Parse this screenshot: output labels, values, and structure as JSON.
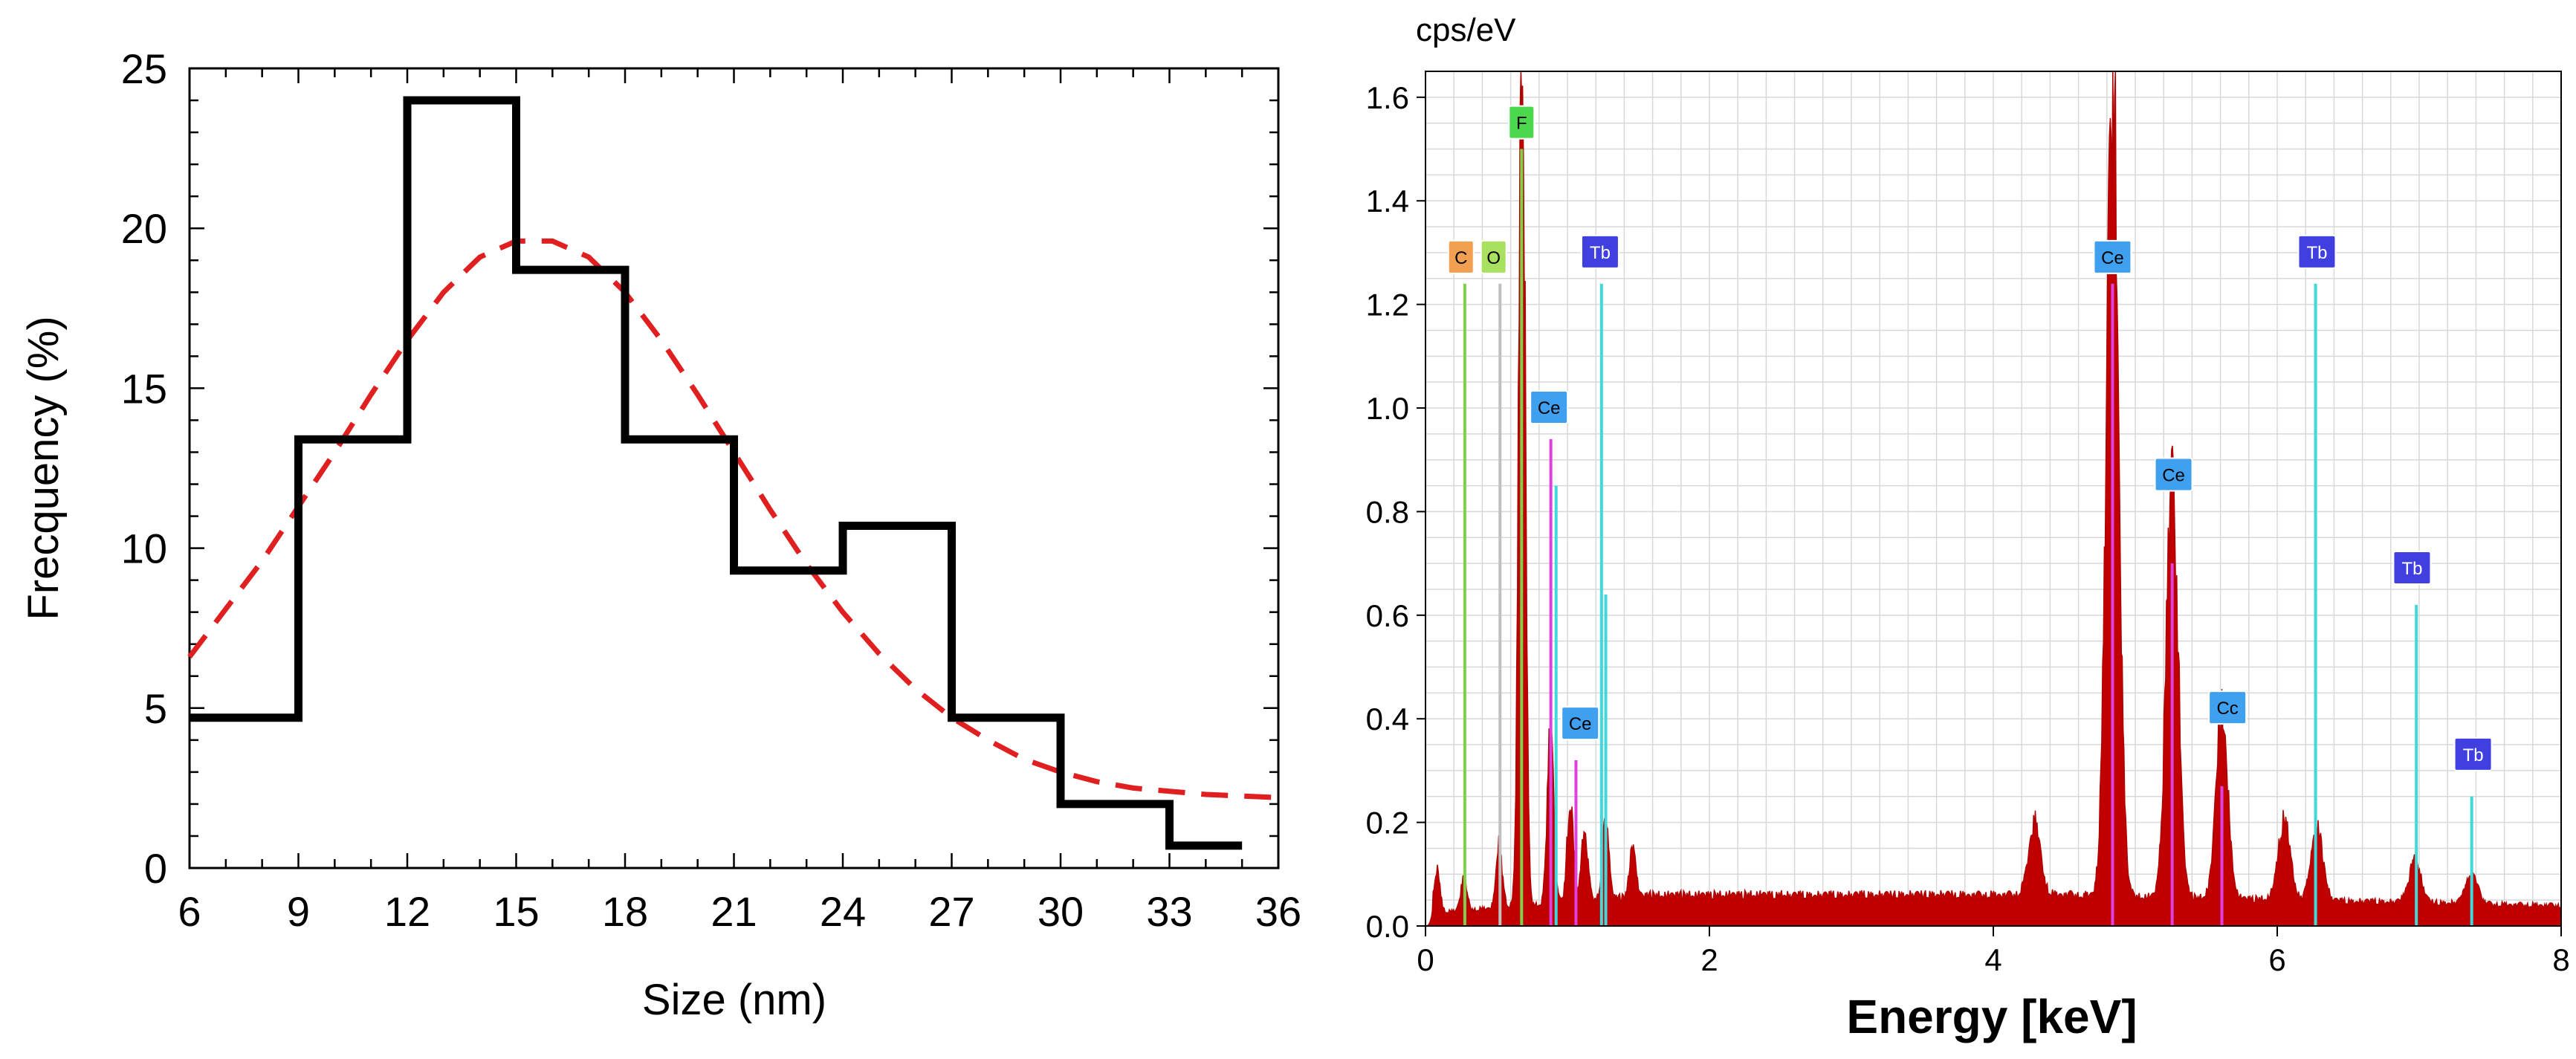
{
  "chart_data": [
    {
      "type": "step",
      "title": "",
      "xlabel": "Size (nm)",
      "ylabel": "Frecquency (%)",
      "xlim": [
        6,
        36
      ],
      "ylim": [
        0,
        25
      ],
      "xticks": [
        "6",
        "9",
        "12",
        "15",
        "18",
        "21",
        "24",
        "27",
        "30",
        "33",
        "36"
      ],
      "yticks": [
        "0",
        "5",
        "10",
        "15",
        "20",
        "25"
      ],
      "series": [
        {
          "name": "histogram",
          "kind": "step",
          "color": "#000000",
          "bins": [
            {
              "x0": 6,
              "x1": 9,
              "value": 4.7
            },
            {
              "x0": 9,
              "x1": 12,
              "value": 13.4
            },
            {
              "x0": 12,
              "x1": 15,
              "value": 24.0
            },
            {
              "x0": 15,
              "x1": 18,
              "value": 18.7
            },
            {
              "x0": 18,
              "x1": 21,
              "value": 13.4
            },
            {
              "x0": 21,
              "x1": 24,
              "value": 9.3
            },
            {
              "x0": 24,
              "x1": 27,
              "value": 10.7
            },
            {
              "x0": 27,
              "x1": 30,
              "value": 4.7
            },
            {
              "x0": 30,
              "x1": 33,
              "value": 2.0
            },
            {
              "x0": 33,
              "x1": 35,
              "value": 0.7
            }
          ]
        },
        {
          "name": "fit",
          "kind": "dashed-curve",
          "color": "#e02020",
          "x": [
            6,
            7,
            8,
            9,
            10,
            11,
            12,
            13,
            14,
            15,
            16,
            17,
            18,
            19,
            20,
            21,
            22,
            23,
            24,
            25,
            26,
            27,
            28,
            29,
            30,
            31,
            32,
            33,
            34,
            35,
            36
          ],
          "y": [
            6.6,
            8.1,
            9.6,
            11.3,
            13.0,
            14.8,
            16.5,
            18.0,
            19.1,
            19.6,
            19.6,
            19.1,
            18.0,
            16.5,
            14.8,
            13.0,
            11.2,
            9.5,
            8.0,
            6.7,
            5.6,
            4.7,
            4.0,
            3.4,
            3.0,
            2.7,
            2.5,
            2.4,
            2.3,
            2.25,
            2.2
          ]
        }
      ]
    },
    {
      "type": "spectrum",
      "title": "",
      "xlabel": "Energy [keV]",
      "ylabel": "cps/eV",
      "xlim": [
        0,
        8
      ],
      "ylim": [
        0,
        1.65
      ],
      "xticks": [
        "0",
        "2",
        "4",
        "6",
        "8"
      ],
      "yticks": [
        "0.0",
        "0.2",
        "0.4",
        "0.6",
        "0.8",
        "1.0",
        "1.2",
        "1.4",
        "1.6"
      ],
      "grid": true,
      "spectrum_color": "#c00000",
      "background_level": 0.06,
      "peaks": [
        {
          "center": 0.08,
          "height": 0.08
        },
        {
          "center": 0.27,
          "height": 0.06
        },
        {
          "center": 0.52,
          "height": 0.12
        },
        {
          "center": 0.68,
          "height": 1.75
        },
        {
          "center": 0.88,
          "height": 0.35
        },
        {
          "center": 1.02,
          "height": 0.2
        },
        {
          "center": 1.12,
          "height": 0.14
        },
        {
          "center": 1.27,
          "height": 0.16
        },
        {
          "center": 1.46,
          "height": 0.1
        },
        {
          "center": 4.29,
          "height": 0.14
        },
        {
          "center": 4.84,
          "height": 1.57
        },
        {
          "center": 5.26,
          "height": 0.8
        },
        {
          "center": 5.61,
          "height": 0.35
        },
        {
          "center": 6.05,
          "height": 0.15
        },
        {
          "center": 6.28,
          "height": 0.14
        },
        {
          "center": 6.97,
          "height": 0.08
        },
        {
          "center": 7.37,
          "height": 0.06
        }
      ],
      "element_lines": [
        {
          "element": "C",
          "energy": 0.277,
          "height": 1.24,
          "color": "#7dd24a"
        },
        {
          "element": "O",
          "energy": 0.525,
          "height": 1.24,
          "color": "#c0c0c0"
        },
        {
          "element": "F",
          "energy": 0.677,
          "height": 1.5,
          "color": "#7dd24a"
        },
        {
          "element": "Tb",
          "energy": 1.24,
          "height": 1.24,
          "color": "#40d8d8"
        },
        {
          "element": "Tb",
          "energy": 1.27,
          "height": 0.64,
          "color": "#40d8d8"
        },
        {
          "element": "Tb",
          "energy": 0.92,
          "height": 0.85,
          "color": "#40d8d8"
        },
        {
          "element": "Ce",
          "energy": 0.883,
          "height": 0.94,
          "color": "#e040e0"
        },
        {
          "element": "Ce",
          "energy": 1.06,
          "height": 0.32,
          "color": "#e040e0"
        },
        {
          "element": "Ce",
          "energy": 4.84,
          "height": 1.24,
          "color": "#e040e0"
        },
        {
          "element": "Ce",
          "energy": 5.26,
          "height": 0.7,
          "color": "#e040e0"
        },
        {
          "element": "Ce",
          "energy": 5.61,
          "height": 0.27,
          "color": "#e040e0"
        },
        {
          "element": "Tb",
          "energy": 6.27,
          "height": 1.24,
          "color": "#40d8d8"
        },
        {
          "element": "Tb",
          "energy": 6.98,
          "height": 0.62,
          "color": "#40d8d8"
        },
        {
          "element": "Tb",
          "energy": 7.37,
          "height": 0.25,
          "color": "#40d8d8"
        }
      ],
      "labels": [
        {
          "text": "F",
          "energy": 0.677,
          "value": 1.52,
          "color": "#4cd84c"
        },
        {
          "text": "C",
          "energy": 0.25,
          "value": 1.26,
          "color": "#f0a050"
        },
        {
          "text": "O",
          "energy": 0.48,
          "value": 1.26,
          "color": "#a8e060"
        },
        {
          "text": "Tb",
          "energy": 1.23,
          "value": 1.27,
          "color": "#4040e0"
        },
        {
          "text": "Ce",
          "energy": 0.87,
          "value": 0.97,
          "color": "#40a0f0"
        },
        {
          "text": "Ce",
          "energy": 1.09,
          "value": 0.36,
          "color": "#40a0f0"
        },
        {
          "text": "Ce",
          "energy": 4.84,
          "value": 1.26,
          "color": "#40a0f0"
        },
        {
          "text": "Ce",
          "energy": 5.27,
          "value": 0.84,
          "color": "#40a0f0"
        },
        {
          "text": "Cc",
          "energy": 5.65,
          "value": 0.39,
          "color": "#40a0f0"
        },
        {
          "text": "Tb",
          "energy": 6.28,
          "value": 1.27,
          "color": "#4040e0"
        },
        {
          "text": "Tb",
          "energy": 6.95,
          "value": 0.66,
          "color": "#4040e0"
        },
        {
          "text": "Tb",
          "energy": 7.38,
          "value": 0.3,
          "color": "#4040e0"
        }
      ]
    }
  ]
}
